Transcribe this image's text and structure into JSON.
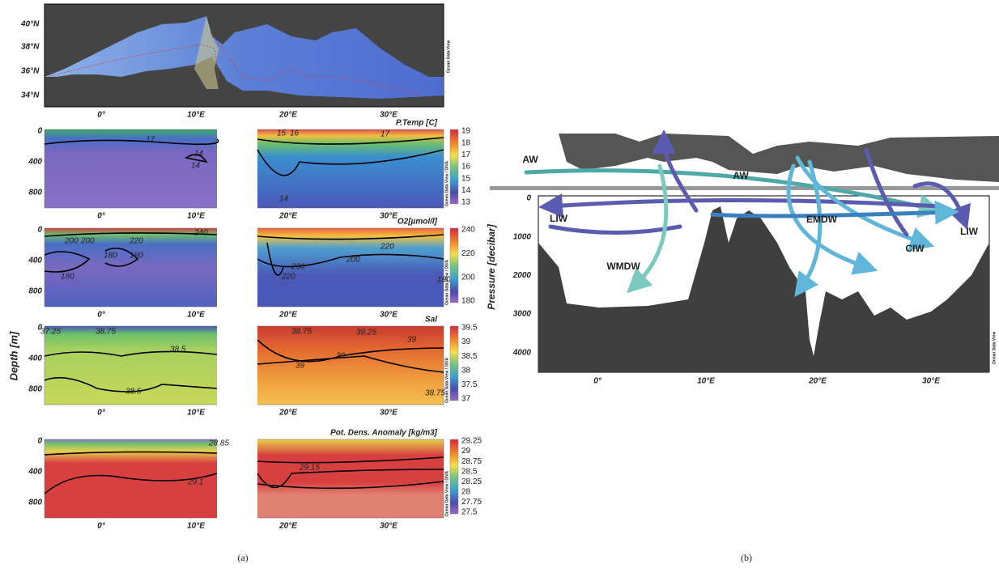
{
  "panel_a": {
    "label": "(a)",
    "depth_axis_title": "Depth [m]",
    "map": {
      "lat_labels": [
        "40°N",
        "38°N",
        "36°N",
        "34°N"
      ],
      "lon_labels": [
        "0°",
        "10°E",
        "20°E",
        "30°E"
      ],
      "credit": "Ocean Data View"
    },
    "sections": [
      {
        "title": "P.Temp [C]",
        "depth_ticks": [
          "0",
          "400",
          "800"
        ],
        "lon_labels": [
          "0°",
          "10°E",
          "20°E",
          "30°E"
        ],
        "colorbar_ticks": [
          "19",
          "18",
          "17",
          "16",
          "15",
          "14",
          "13"
        ],
        "contour_labels": [
          "17",
          "14",
          "15",
          "16",
          "17",
          "14",
          "14"
        ],
        "credit": "Ocean Data View / DIVA"
      },
      {
        "title": "O2[µmol/l]",
        "depth_ticks": [
          "0",
          "400",
          "800"
        ],
        "lon_labels": [
          "0°",
          "10°E",
          "20°E",
          "30°E"
        ],
        "colorbar_ticks": [
          "240",
          "220",
          "200",
          "180"
        ],
        "contour_labels": [
          "200",
          "200",
          "220",
          "240",
          "180",
          "180",
          "180",
          "220",
          "200",
          "220",
          "200",
          "180"
        ],
        "credit": "Ocean Data View / DIVA"
      },
      {
        "title": "Sal",
        "depth_ticks": [
          "0",
          "400",
          "800"
        ],
        "lon_labels": [
          "0°",
          "10°E",
          "20°E",
          "30°E"
        ],
        "colorbar_ticks": [
          "39.5",
          "39",
          "38.5",
          "38",
          "37.5",
          "37"
        ],
        "contour_labels": [
          "37.25",
          "38.75",
          "38.5",
          "38.5",
          "38.75",
          "39.25",
          "39",
          "39",
          "39",
          "38.75"
        ],
        "credit": "Ocean Data View / DIVA"
      },
      {
        "title": "Pot. Dens. Anomaly [kg/m3]",
        "depth_ticks": [
          "0",
          "400",
          "800"
        ],
        "lon_labels": [
          "0°",
          "10°E",
          "20°E",
          "30°E"
        ],
        "colorbar_ticks": [
          "29.25",
          "29",
          "28.75",
          "28.5",
          "28.25",
          "28",
          "27.75",
          "27.5"
        ],
        "contour_labels": [
          "28.85",
          "29.1",
          "29.15"
        ],
        "credit": "Ocean Data View / DIVA"
      }
    ]
  },
  "panel_b": {
    "label": "(b)",
    "y_axis_title": "Pressure [decibar]",
    "yticks": [
      "0",
      "1000",
      "2000",
      "3000",
      "4000"
    ],
    "lon_labels": [
      "0°",
      "10°E",
      "20°E",
      "30°E"
    ],
    "water_masses": [
      "AW",
      "AW",
      "LIW",
      "LIW",
      "EMDW",
      "CIW",
      "WMDW"
    ],
    "credit": "Ocean Data View"
  }
}
